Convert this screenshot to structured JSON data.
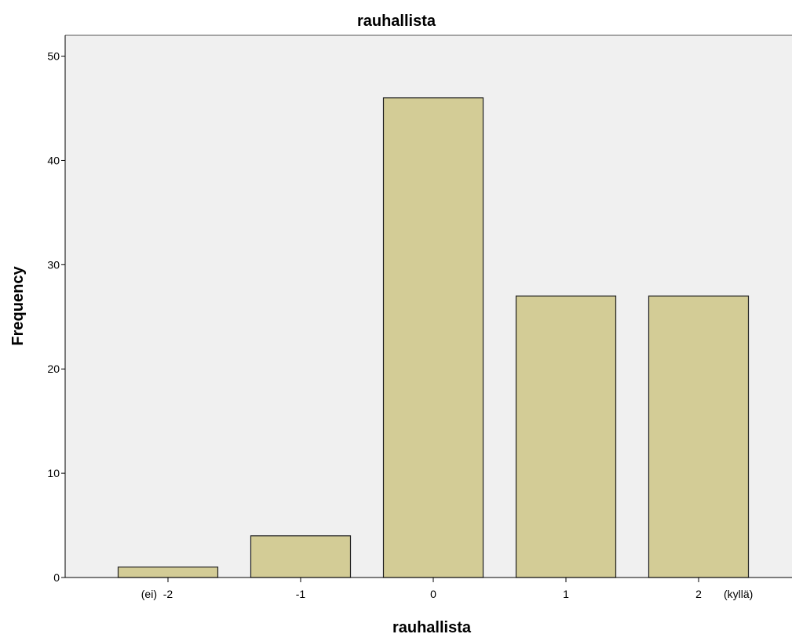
{
  "chart_data": {
    "type": "bar",
    "title": "rauhallista",
    "xlabel": "rauhallista",
    "ylabel": "Frequency",
    "categories": [
      "-2",
      "-1",
      "0",
      "1",
      "2"
    ],
    "category_labels": [
      {
        "prefix": "(ei)",
        "label": "-2",
        "suffix": ""
      },
      {
        "prefix": "",
        "label": "-1",
        "suffix": ""
      },
      {
        "prefix": "",
        "label": "0",
        "suffix": ""
      },
      {
        "prefix": "",
        "label": "1",
        "suffix": ""
      },
      {
        "prefix": "",
        "label": "2",
        "suffix": "(kyllä)"
      }
    ],
    "values": [
      1,
      4,
      46,
      27,
      27
    ],
    "ylim": [
      0,
      52
    ],
    "yticks": [
      0,
      10,
      20,
      30,
      40,
      50
    ],
    "grid": false,
    "colors": {
      "bar_fill": "#d3cc96",
      "bar_stroke": "#222222",
      "plot_background": "#f0f0f0"
    }
  }
}
